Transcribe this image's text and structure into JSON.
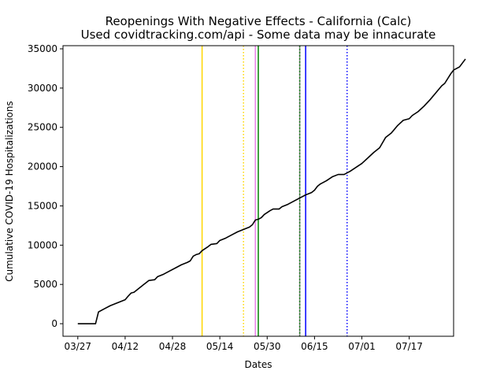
{
  "chart_data": {
    "type": "line",
    "title": "Reopenings With Negative Effects - California (Calc)",
    "subtitle": "Used covidtracking.com/api - Some data may be innacurate",
    "xlabel": "Dates",
    "ylabel": "Cumulative COVID-19 Hospitalizations",
    "x_axis": "date",
    "xlim": [
      "2020-03-22",
      "2020-08-01"
    ],
    "ylim": [
      -1600,
      35400
    ],
    "x_ticks": [
      {
        "date": "2020-03-27",
        "label": "03/27"
      },
      {
        "date": "2020-04-12",
        "label": "04/12"
      },
      {
        "date": "2020-04-28",
        "label": "04/28"
      },
      {
        "date": "2020-05-14",
        "label": "05/14"
      },
      {
        "date": "2020-05-30",
        "label": "05/30"
      },
      {
        "date": "2020-06-15",
        "label": "06/15"
      },
      {
        "date": "2020-07-01",
        "label": "07/01"
      },
      {
        "date": "2020-07-17",
        "label": "07/17"
      }
    ],
    "y_ticks": [
      0,
      5000,
      10000,
      15000,
      20000,
      25000,
      30000,
      35000
    ],
    "grid": false,
    "series": [
      {
        "color": "#000000",
        "points": [
          [
            "2020-03-27",
            0
          ],
          [
            "2020-03-29",
            0
          ],
          [
            "2020-03-31",
            0
          ],
          [
            "2020-04-02",
            0
          ],
          [
            "2020-04-03",
            1500
          ],
          [
            "2020-04-05",
            1900
          ],
          [
            "2020-04-07",
            2300
          ],
          [
            "2020-04-09",
            2600
          ],
          [
            "2020-04-11",
            2900
          ],
          [
            "2020-04-12",
            3050
          ],
          [
            "2020-04-13",
            3500
          ],
          [
            "2020-04-14",
            3900
          ],
          [
            "2020-04-15",
            4000
          ],
          [
            "2020-04-16",
            4300
          ],
          [
            "2020-04-18",
            4900
          ],
          [
            "2020-04-20",
            5500
          ],
          [
            "2020-04-22",
            5600
          ],
          [
            "2020-04-23",
            6000
          ],
          [
            "2020-04-25",
            6300
          ],
          [
            "2020-04-27",
            6700
          ],
          [
            "2020-04-29",
            7100
          ],
          [
            "2020-05-01",
            7500
          ],
          [
            "2020-05-03",
            7800
          ],
          [
            "2020-05-04",
            8000
          ],
          [
            "2020-05-05",
            8600
          ],
          [
            "2020-05-06",
            8800
          ],
          [
            "2020-05-07",
            8900
          ],
          [
            "2020-05-08",
            9300
          ],
          [
            "2020-05-10",
            9800
          ],
          [
            "2020-05-11",
            10100
          ],
          [
            "2020-05-13",
            10200
          ],
          [
            "2020-05-14",
            10600
          ],
          [
            "2020-05-16",
            10900
          ],
          [
            "2020-05-18",
            11300
          ],
          [
            "2020-05-20",
            11700
          ],
          [
            "2020-05-22",
            12000
          ],
          [
            "2020-05-24",
            12300
          ],
          [
            "2020-05-25",
            12600
          ],
          [
            "2020-05-26",
            13200
          ],
          [
            "2020-05-27",
            13300
          ],
          [
            "2020-05-28",
            13500
          ],
          [
            "2020-05-29",
            13900
          ],
          [
            "2020-05-31",
            14400
          ],
          [
            "2020-06-01",
            14600
          ],
          [
            "2020-06-03",
            14600
          ],
          [
            "2020-06-04",
            14900
          ],
          [
            "2020-06-06",
            15200
          ],
          [
            "2020-06-08",
            15600
          ],
          [
            "2020-06-10",
            16000
          ],
          [
            "2020-06-12",
            16400
          ],
          [
            "2020-06-14",
            16700
          ],
          [
            "2020-06-15",
            17000
          ],
          [
            "2020-06-16",
            17500
          ],
          [
            "2020-06-17",
            17800
          ],
          [
            "2020-06-19",
            18200
          ],
          [
            "2020-06-21",
            18700
          ],
          [
            "2020-06-23",
            19000
          ],
          [
            "2020-06-25",
            19000
          ],
          [
            "2020-06-27",
            19400
          ],
          [
            "2020-06-29",
            19900
          ],
          [
            "2020-07-01",
            20400
          ],
          [
            "2020-07-03",
            21100
          ],
          [
            "2020-07-05",
            21800
          ],
          [
            "2020-07-07",
            22400
          ],
          [
            "2020-07-09",
            23700
          ],
          [
            "2020-07-11",
            24300
          ],
          [
            "2020-07-13",
            25200
          ],
          [
            "2020-07-15",
            25900
          ],
          [
            "2020-07-17",
            26100
          ],
          [
            "2020-07-18",
            26500
          ],
          [
            "2020-07-20",
            27000
          ],
          [
            "2020-07-22",
            27700
          ],
          [
            "2020-07-24",
            28500
          ],
          [
            "2020-07-26",
            29400
          ],
          [
            "2020-07-28",
            30300
          ],
          [
            "2020-07-29",
            30600
          ],
          [
            "2020-07-31",
            31800
          ],
          [
            "2020-08-01",
            32300
          ],
          [
            "2020-08-03",
            32700
          ],
          [
            "2020-08-05",
            33700
          ]
        ]
      }
    ],
    "vertical_lines": [
      {
        "date": "2020-05-08",
        "color": "#ffd700",
        "style": "solid"
      },
      {
        "date": "2020-05-22",
        "color": "#ffd700",
        "style": "dotted"
      },
      {
        "date": "2020-05-26",
        "color": "#ee82ee",
        "style": "solid"
      },
      {
        "date": "2020-05-27",
        "color": "#008000",
        "style": "solid"
      },
      {
        "date": "2020-06-10",
        "color": "#808080",
        "style": "solid"
      },
      {
        "date": "2020-06-10",
        "color": "#008000",
        "style": "dotted"
      },
      {
        "date": "2020-06-12",
        "color": "#0000ff",
        "style": "solid"
      },
      {
        "date": "2020-06-26",
        "color": "#0000ff",
        "style": "dotted"
      }
    ]
  }
}
